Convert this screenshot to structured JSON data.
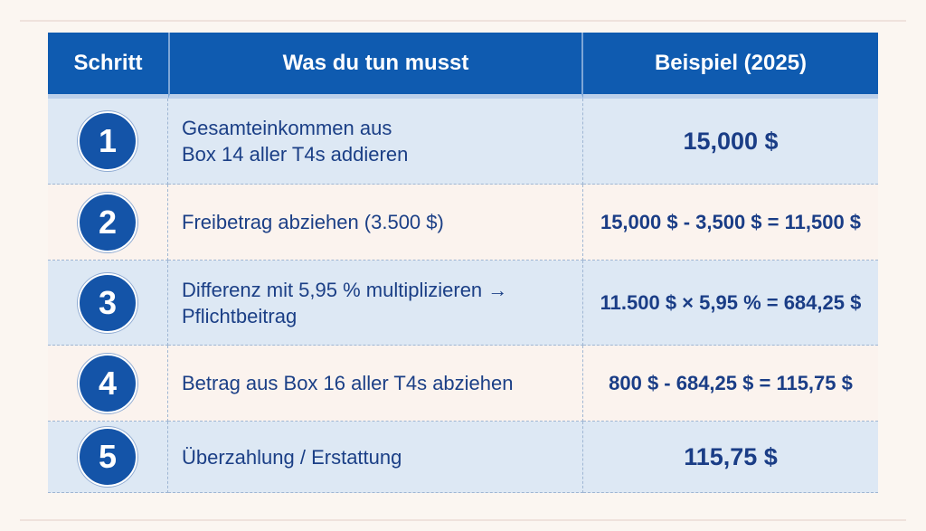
{
  "header": {
    "col1": "Schritt",
    "col2": "Was du tun musst",
    "col3": "Beispiel (2025)"
  },
  "rows": [
    {
      "step": "1",
      "description": "Gesamteinkommen aus\nBox 14 aller T4s addieren",
      "example": "15,000 $"
    },
    {
      "step": "2",
      "description": "Freibetrag abziehen (3.500 $)",
      "example": "15,000 $ - 3,500 $ = 11,500 $"
    },
    {
      "step": "3",
      "description": "Differenz mit 5,95 % multiplizieren →\nPflichtbeitrag",
      "example": "11.500 $ × 5,95 % = 684,25 $"
    },
    {
      "step": "4",
      "description": "Betrag aus Box 16 aller T4s abziehen",
      "example": "800 $ - 684,25 $ = 115,75 $"
    },
    {
      "step": "5",
      "description": "Überzahlung / Erstattung",
      "example": "115,75 $"
    }
  ],
  "colors": {
    "header_bg": "#0f5bb0",
    "row_blue": "#dde8f4",
    "row_cream": "#fbf3ee",
    "text": "#1b3f86"
  }
}
